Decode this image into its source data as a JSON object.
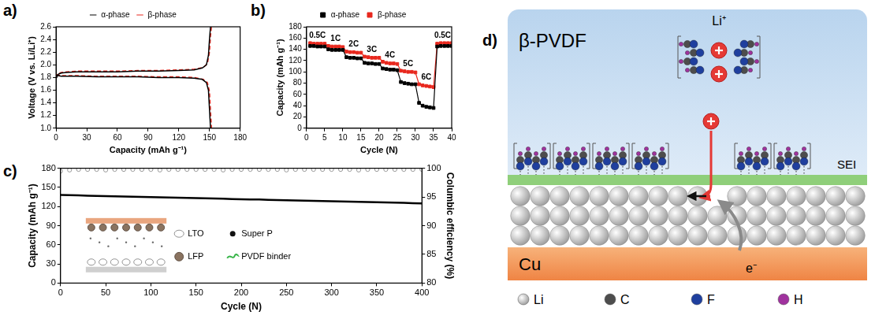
{
  "chart_data": [
    {
      "panel": "a)",
      "type": "line",
      "x_label": "Capacity (mAh g⁻¹)",
      "y_label": "Voltage (V vs. Li/Li⁺)",
      "xlim": [
        0,
        180
      ],
      "xticks": [
        0,
        30,
        60,
        90,
        120,
        150,
        180
      ],
      "ylim": [
        1.0,
        2.6
      ],
      "yticks": [
        {
          "value": 1.0,
          "label": "1.0"
        },
        1.2,
        1.4,
        1.6,
        1.8,
        {
          "value": 2.0,
          "label": "2.0"
        },
        2.2,
        2.4,
        2.6
      ],
      "grid": false,
      "legend": "top",
      "series": [
        {
          "name": "α-phase",
          "color": "#000000",
          "line_style": "solid",
          "marker": "none",
          "x": [
            0,
            2,
            5,
            10,
            20,
            40,
            60,
            80,
            100,
            120,
            135,
            143,
            147,
            149,
            150,
            151,
            null,
            0,
            2,
            5,
            20,
            40,
            60,
            80,
            100,
            120,
            135,
            143,
            147,
            149,
            150,
            151
          ],
          "values": [
            1.78,
            1.85,
            1.87,
            1.88,
            1.89,
            1.89,
            1.89,
            1.9,
            1.9,
            1.91,
            1.92,
            1.95,
            2.0,
            2.15,
            2.4,
            2.6,
            null,
            1.84,
            1.83,
            1.82,
            1.82,
            1.81,
            1.81,
            1.81,
            1.8,
            1.8,
            1.79,
            1.77,
            1.72,
            1.6,
            1.3,
            1.0
          ]
        },
        {
          "name": "β-phase",
          "color": "#e8281e",
          "line_style": "dashed",
          "marker": "none",
          "x": [
            0,
            2,
            5,
            10,
            20,
            40,
            60,
            80,
            100,
            120,
            135,
            144,
            148,
            150,
            151,
            152,
            null,
            0,
            2,
            5,
            20,
            40,
            60,
            80,
            100,
            120,
            135,
            144,
            148,
            150,
            151,
            152
          ],
          "values": [
            1.79,
            1.86,
            1.88,
            1.89,
            1.9,
            1.9,
            1.9,
            1.91,
            1.91,
            1.92,
            1.93,
            1.96,
            2.02,
            2.2,
            2.45,
            2.6,
            null,
            1.85,
            1.84,
            1.83,
            1.83,
            1.82,
            1.82,
            1.82,
            1.81,
            1.81,
            1.8,
            1.77,
            1.72,
            1.58,
            1.28,
            1.0
          ]
        }
      ]
    },
    {
      "panel": "b)",
      "type": "line",
      "x_label": "Cycle (N)",
      "y_label": "Capacity (mAh g⁻¹)",
      "xlim": [
        0,
        40
      ],
      "xticks": [
        0,
        5,
        10,
        15,
        20,
        25,
        30,
        35,
        40
      ],
      "ylim": [
        0,
        180
      ],
      "yticks": [
        0,
        20,
        40,
        60,
        80,
        100,
        120,
        140,
        160,
        180
      ],
      "grid": false,
      "legend": "top",
      "x": [
        1,
        2,
        3,
        4,
        5,
        6,
        7,
        8,
        9,
        10,
        11,
        12,
        13,
        14,
        15,
        16,
        17,
        18,
        19,
        20,
        21,
        22,
        23,
        24,
        25,
        26,
        27,
        28,
        29,
        30,
        31,
        32,
        33,
        34,
        35,
        36,
        37,
        38,
        39,
        40
      ],
      "series": [
        {
          "name": "α-phase",
          "color": "#000000",
          "marker": "square",
          "line_style": "solid",
          "values": [
            146,
            146,
            145,
            145,
            145,
            140,
            139,
            139,
            139,
            139,
            126,
            125,
            125,
            124,
            124,
            116,
            115,
            115,
            114,
            114,
            106,
            105,
            104,
            104,
            103,
            82,
            80,
            79,
            78,
            78,
            45,
            40,
            38,
            37,
            36,
            145,
            146,
            146,
            146,
            146
          ]
        },
        {
          "name": "β-phase",
          "color": "#e8281e",
          "marker": "square",
          "line_style": "solid",
          "values": [
            151,
            150,
            150,
            150,
            150,
            146,
            145,
            145,
            145,
            144,
            136,
            135,
            135,
            134,
            134,
            127,
            126,
            125,
            125,
            125,
            118,
            116,
            115,
            115,
            114,
            102,
            101,
            100,
            100,
            99,
            78,
            76,
            75,
            74,
            73,
            150,
            151,
            151,
            151,
            151
          ]
        }
      ],
      "annotations": [
        {
          "text": "0.5C",
          "x": 3,
          "y": 164
        },
        {
          "text": "1C",
          "x": 8,
          "y": 158
        },
        {
          "text": "2C",
          "x": 13,
          "y": 149
        },
        {
          "text": "3C",
          "x": 18,
          "y": 139
        },
        {
          "text": "4C",
          "x": 23,
          "y": 130
        },
        {
          "text": "5C",
          "x": 28,
          "y": 114
        },
        {
          "text": "6C",
          "x": 33,
          "y": 90
        },
        {
          "text": "0.5C",
          "x": 37.5,
          "y": 164
        }
      ]
    },
    {
      "panel": "c)",
      "type": "line",
      "x_label": "Cycle (N)",
      "y_label": "Capacity (mAh g⁻¹)",
      "y2_label": "Columbic efficiency (%)",
      "xlim": [
        0,
        400
      ],
      "xticks": [
        0,
        50,
        100,
        150,
        200,
        250,
        300,
        350,
        400
      ],
      "ylim": [
        0,
        180
      ],
      "yticks": [
        0,
        30,
        60,
        90,
        120,
        150,
        180
      ],
      "y2lim": [
        80,
        100
      ],
      "y2ticks": [
        80,
        85,
        90,
        95,
        100
      ],
      "grid": false,
      "x": [
        0,
        10,
        20,
        30,
        40,
        50,
        60,
        70,
        80,
        90,
        100,
        110,
        120,
        130,
        140,
        150,
        160,
        170,
        180,
        190,
        200,
        210,
        220,
        230,
        240,
        250,
        260,
        270,
        280,
        290,
        300,
        310,
        320,
        330,
        340,
        350,
        360,
        370,
        380,
        390,
        400
      ],
      "series": [
        {
          "color": "#000000",
          "marker": "none",
          "line_style": "solid",
          "values": [
            138.0,
            137.7,
            137.4,
            137.0,
            136.7,
            136.4,
            136.1,
            135.7,
            135.4,
            135.1,
            134.8,
            134.4,
            134.1,
            133.8,
            133.5,
            133.1,
            132.8,
            132.5,
            132.2,
            131.8,
            131.5,
            131.2,
            130.9,
            130.5,
            130.2,
            129.9,
            129.6,
            129.2,
            128.9,
            128.6,
            128.3,
            127.9,
            127.6,
            127.3,
            127.0,
            126.6,
            126.3,
            126.0,
            125.7,
            125.3,
            125.0
          ]
        },
        {
          "color": "#9a9a9a",
          "marker": "circle",
          "line_style": "none",
          "axis": "y2",
          "values": [
            99.5,
            99.7,
            99.8,
            99.8,
            99.8,
            99.7,
            99.8,
            99.8,
            99.8,
            99.8,
            99.8,
            99.7,
            99.8,
            99.8,
            99.8,
            99.8,
            99.8,
            99.8,
            99.7,
            99.8,
            99.8,
            99.8,
            99.8,
            99.8,
            99.8,
            99.7,
            99.8,
            99.8,
            99.8,
            99.8,
            99.8,
            99.8,
            99.8,
            99.7,
            99.8,
            99.8,
            99.8,
            99.8,
            99.8,
            99.8,
            99.8
          ]
        }
      ],
      "inset": [
        "LTO",
        "Super P",
        "LFP",
        "PVDF binder"
      ]
    }
  ],
  "diagram": {
    "panel": "d)",
    "matrix": "β-PVDF",
    "ion": "Li⁺",
    "layer": "SEI",
    "electrode": "Cu",
    "electron": "e⁻",
    "legend": [
      "Li",
      "C",
      "F",
      "H"
    ]
  }
}
